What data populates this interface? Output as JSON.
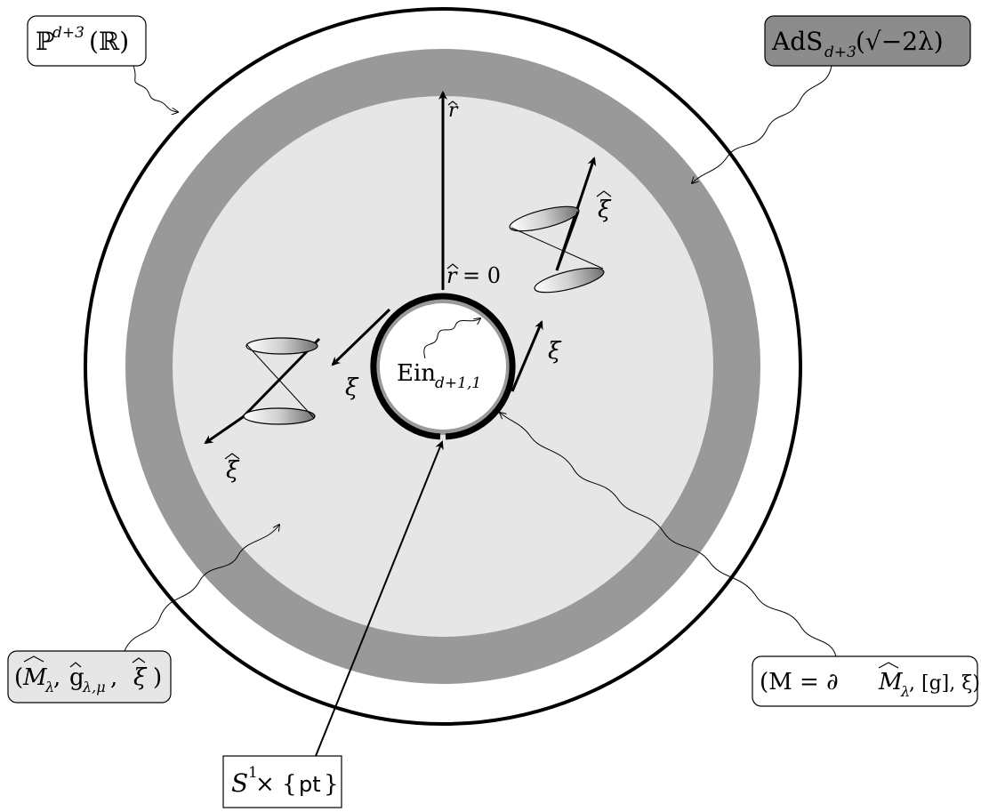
{
  "labels": {
    "projective_space": {
      "base": "ℙ",
      "sup": "d+3",
      "arg": "(ℝ)"
    },
    "ads": {
      "base": "AdS",
      "sub": "d+3",
      "arg": "(√−2λ)"
    },
    "bulk": {
      "open": "(",
      "M": "M",
      "M_sub": "λ",
      "sep1": ", ",
      "g": "g",
      "g_sub": "λ,μ",
      "sep2": ", ",
      "xi": "ξ",
      "close": ")"
    },
    "boundary": {
      "text": "(M = ∂",
      "M": "M",
      "M_sub": "λ",
      "rest": ", [g], ξ)"
    },
    "einstein": {
      "base": "Ein",
      "sub": "d+1,1"
    },
    "circle": {
      "base": "S",
      "sup": "1",
      "rest": " × {",
      "pt": "pt",
      "close": "}"
    },
    "r_hat": "r",
    "r_zero": "= 0",
    "xi_left": "ξ",
    "xi_right": "ξ",
    "xi_hat_left": "ξ",
    "xi_hat_right": "ξ"
  },
  "colors": {
    "ads_band": "#999999",
    "bulk_fill": "#e6e6e6",
    "ads_box": "#8c8c8c",
    "bulk_box": "#e6e6e6"
  }
}
